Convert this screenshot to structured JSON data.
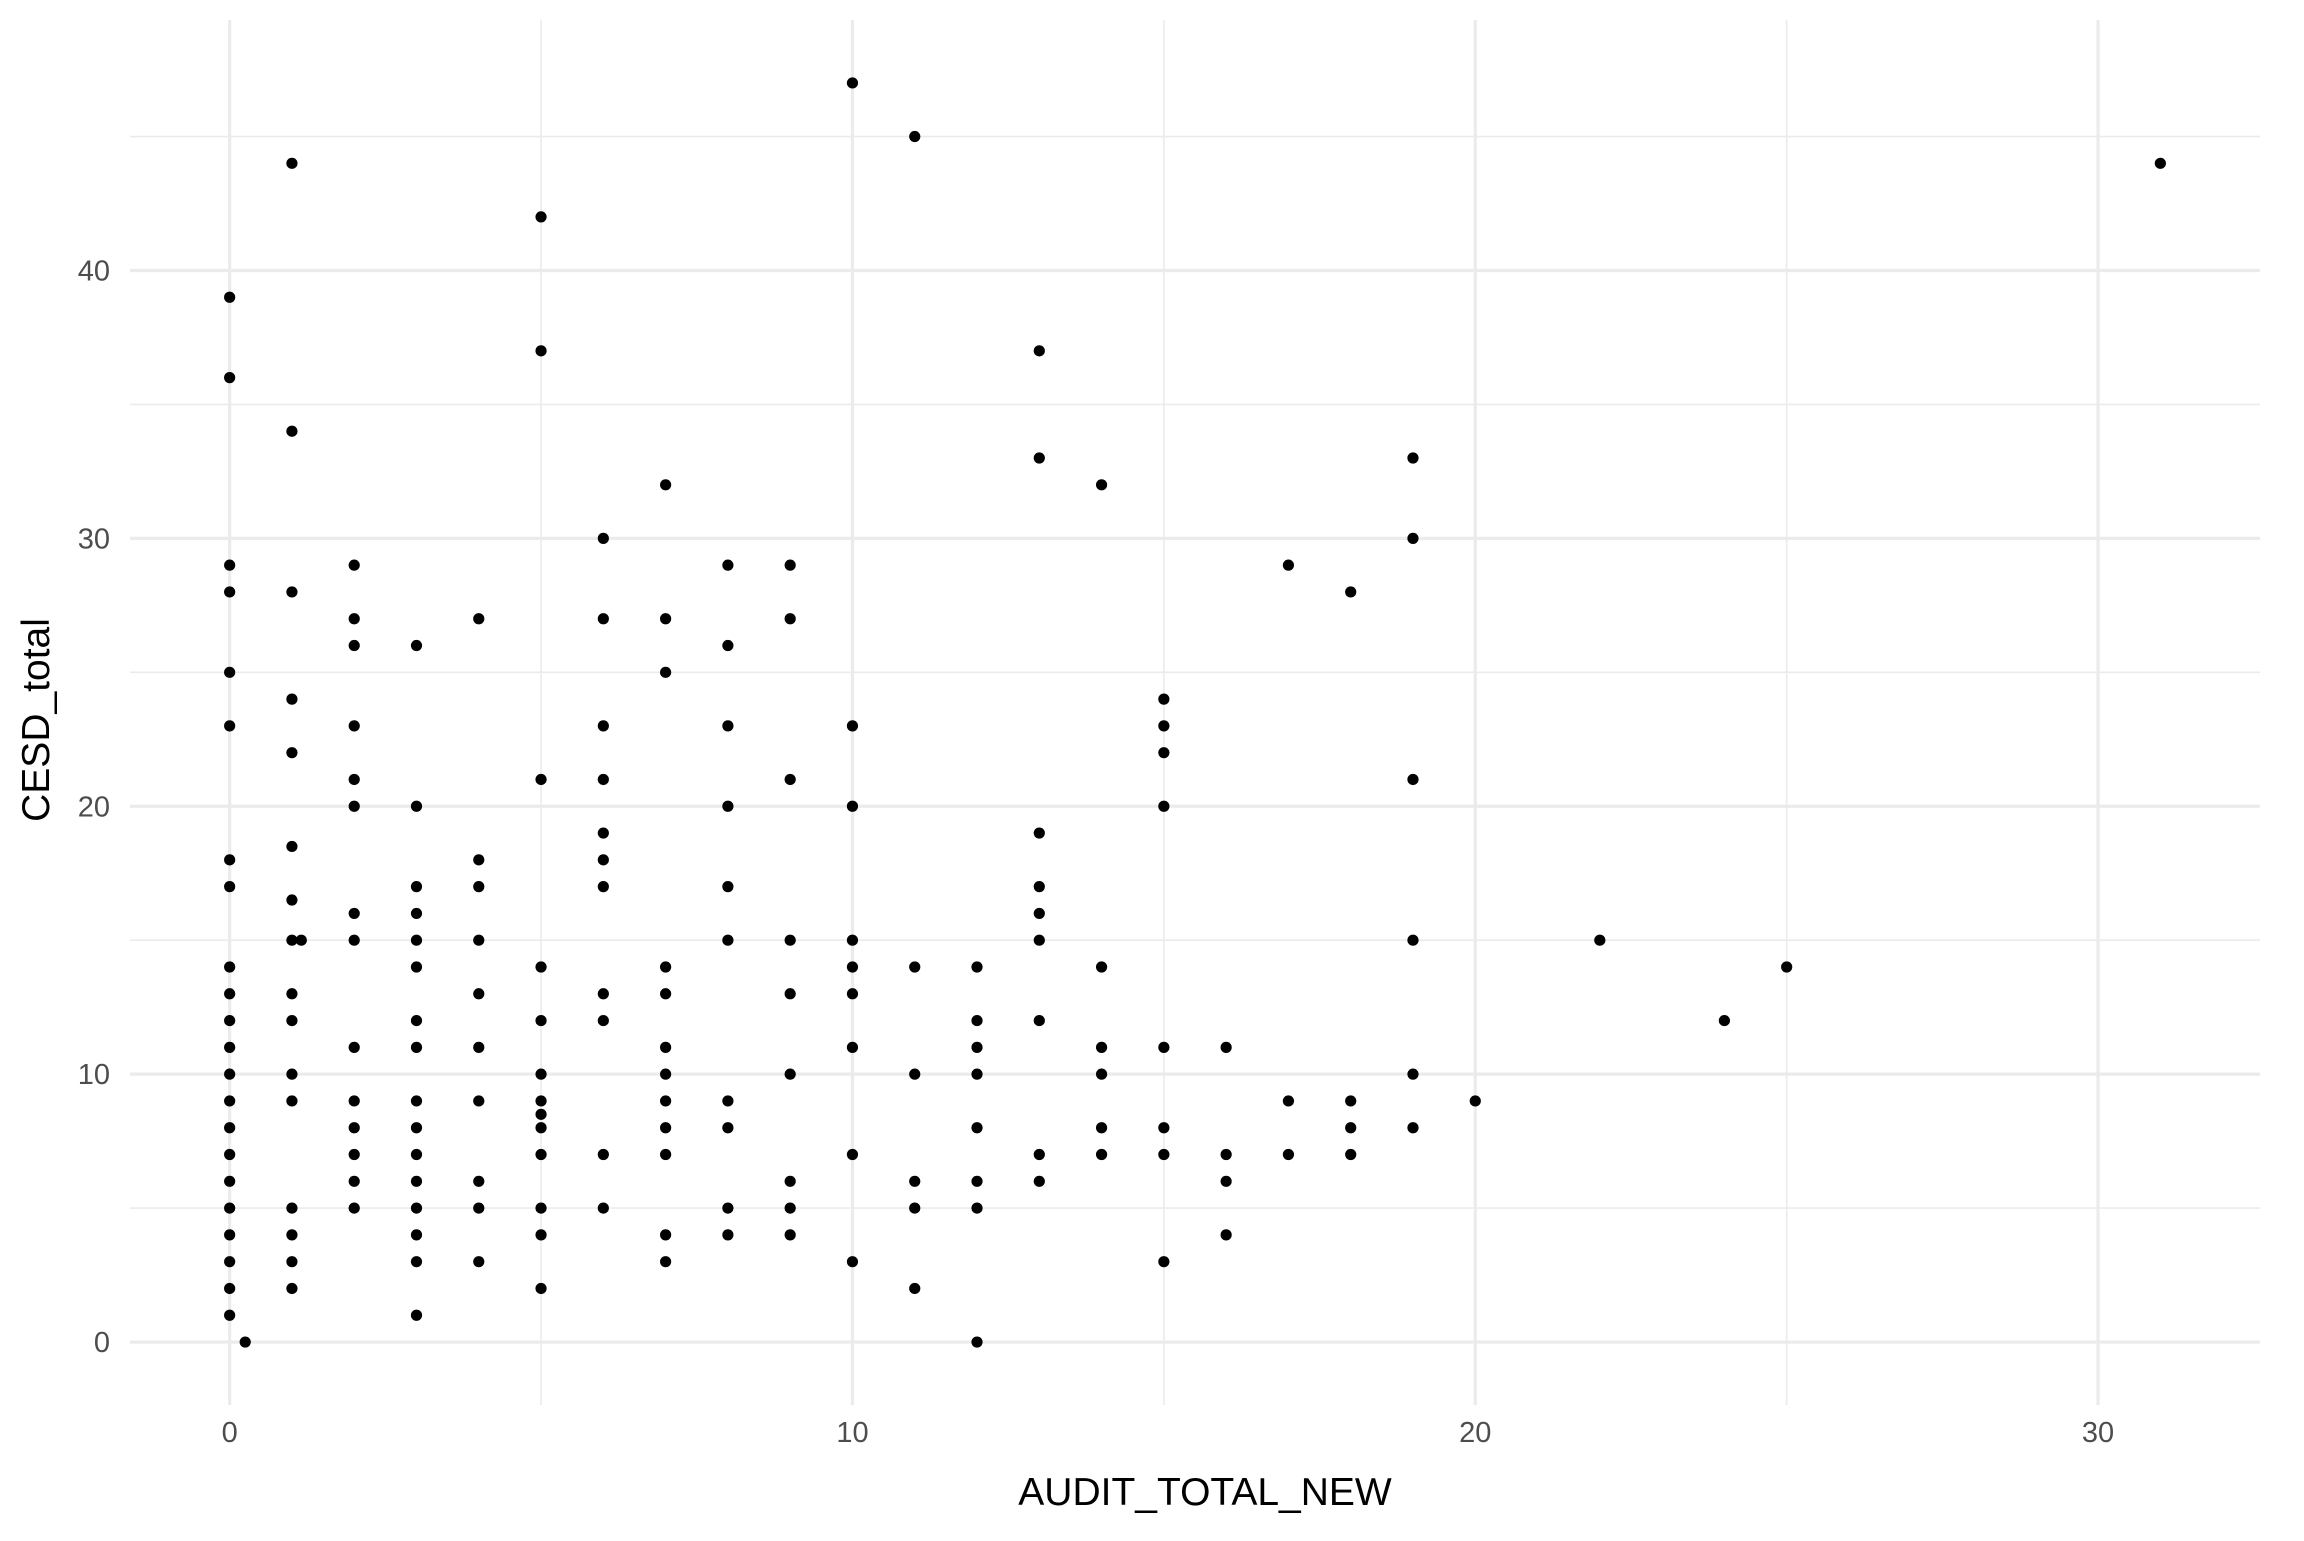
{
  "chart_data": {
    "type": "scatter",
    "title": "",
    "xlabel": "AUDIT_TOTAL_NEW",
    "ylabel": "CESD_total",
    "xlim": [
      -1.6,
      32.6
    ],
    "ylim": [
      -2.35,
      49.35
    ],
    "x_ticks": [
      0,
      10,
      20,
      30
    ],
    "x_tick_labels": [
      "0",
      "10",
      "20",
      "30"
    ],
    "x_minor_ticks": [
      5,
      15,
      25
    ],
    "y_ticks": [
      0,
      10,
      20,
      30,
      40
    ],
    "y_tick_labels": [
      "0",
      "10",
      "20",
      "30",
      "40"
    ],
    "y_minor_ticks": [
      5,
      15,
      25,
      35,
      45
    ],
    "grid": true,
    "colors": {
      "points": "#000000",
      "grid": "#ebebeb",
      "background": "#ffffff"
    },
    "points": [
      [
        0,
        39
      ],
      [
        0,
        36
      ],
      [
        0,
        29
      ],
      [
        0,
        28
      ],
      [
        0,
        25
      ],
      [
        0,
        23
      ],
      [
        0,
        18
      ],
      [
        0,
        17
      ],
      [
        0,
        14
      ],
      [
        0,
        13
      ],
      [
        0,
        12
      ],
      [
        0,
        11
      ],
      [
        0,
        10
      ],
      [
        0,
        9
      ],
      [
        0,
        8
      ],
      [
        0,
        7
      ],
      [
        0,
        6
      ],
      [
        0,
        5
      ],
      [
        0,
        4
      ],
      [
        0,
        3
      ],
      [
        0,
        2
      ],
      [
        0,
        1
      ],
      [
        0.25,
        0
      ],
      [
        1,
        44
      ],
      [
        1,
        34
      ],
      [
        1,
        28
      ],
      [
        1,
        24
      ],
      [
        1,
        22
      ],
      [
        1,
        18.5
      ],
      [
        1,
        16.5
      ],
      [
        1,
        15
      ],
      [
        1.15,
        15
      ],
      [
        1,
        13
      ],
      [
        1,
        12
      ],
      [
        1,
        10
      ],
      [
        1,
        9
      ],
      [
        1,
        5
      ],
      [
        1,
        4
      ],
      [
        1,
        3
      ],
      [
        1,
        2
      ],
      [
        2,
        29
      ],
      [
        2,
        27
      ],
      [
        2,
        26
      ],
      [
        2,
        23
      ],
      [
        2,
        21
      ],
      [
        2,
        20
      ],
      [
        2,
        16
      ],
      [
        2,
        15
      ],
      [
        2,
        11
      ],
      [
        2,
        9
      ],
      [
        2,
        8
      ],
      [
        2,
        7
      ],
      [
        2,
        6
      ],
      [
        2,
        5
      ],
      [
        3,
        26
      ],
      [
        3,
        20
      ],
      [
        3,
        17
      ],
      [
        3,
        16
      ],
      [
        3,
        15
      ],
      [
        3,
        14
      ],
      [
        3,
        12
      ],
      [
        3,
        11
      ],
      [
        3,
        9
      ],
      [
        3,
        8
      ],
      [
        3,
        7
      ],
      [
        3,
        6
      ],
      [
        3,
        5
      ],
      [
        3,
        4
      ],
      [
        3,
        3
      ],
      [
        3,
        1
      ],
      [
        4,
        27
      ],
      [
        4,
        18
      ],
      [
        4,
        17
      ],
      [
        4,
        15
      ],
      [
        4,
        13
      ],
      [
        4,
        11
      ],
      [
        4,
        9
      ],
      [
        4,
        6
      ],
      [
        4,
        5
      ],
      [
        4,
        3
      ],
      [
        5,
        42
      ],
      [
        5,
        37
      ],
      [
        5,
        21
      ],
      [
        5,
        14
      ],
      [
        5,
        12
      ],
      [
        5,
        10
      ],
      [
        5,
        9
      ],
      [
        5,
        8.5
      ],
      [
        5,
        8
      ],
      [
        5,
        7
      ],
      [
        5,
        5
      ],
      [
        5,
        4
      ],
      [
        5,
        2
      ],
      [
        6,
        30
      ],
      [
        6,
        27
      ],
      [
        6,
        23
      ],
      [
        6,
        21
      ],
      [
        6,
        19
      ],
      [
        6,
        18
      ],
      [
        6,
        17
      ],
      [
        6,
        13
      ],
      [
        6,
        12
      ],
      [
        6,
        7
      ],
      [
        6,
        5
      ],
      [
        7,
        32
      ],
      [
        7,
        27
      ],
      [
        7,
        25
      ],
      [
        7,
        14
      ],
      [
        7,
        13
      ],
      [
        7,
        11
      ],
      [
        7,
        10
      ],
      [
        7,
        9
      ],
      [
        7,
        8
      ],
      [
        7,
        7
      ],
      [
        7,
        4
      ],
      [
        7,
        3
      ],
      [
        8,
        29
      ],
      [
        8,
        26
      ],
      [
        8,
        23
      ],
      [
        8,
        20
      ],
      [
        8,
        17
      ],
      [
        8,
        15
      ],
      [
        8,
        9
      ],
      [
        8,
        8
      ],
      [
        8,
        5
      ],
      [
        8,
        4
      ],
      [
        9,
        29
      ],
      [
        9,
        27
      ],
      [
        9,
        21
      ],
      [
        9,
        15
      ],
      [
        9,
        13
      ],
      [
        9,
        10
      ],
      [
        9,
        6
      ],
      [
        9,
        5
      ],
      [
        9,
        4
      ],
      [
        10,
        47
      ],
      [
        10,
        23
      ],
      [
        10,
        20
      ],
      [
        10,
        15
      ],
      [
        10,
        14
      ],
      [
        10,
        13
      ],
      [
        10,
        11
      ],
      [
        10,
        7
      ],
      [
        10,
        3
      ],
      [
        11,
        45
      ],
      [
        11,
        14
      ],
      [
        11,
        10
      ],
      [
        11,
        6
      ],
      [
        11,
        5
      ],
      [
        11,
        2
      ],
      [
        12,
        14
      ],
      [
        12,
        12
      ],
      [
        12,
        11
      ],
      [
        12,
        10
      ],
      [
        12,
        8
      ],
      [
        12,
        6
      ],
      [
        12,
        5
      ],
      [
        12,
        0
      ],
      [
        13,
        37
      ],
      [
        13,
        33
      ],
      [
        13,
        19
      ],
      [
        13,
        17
      ],
      [
        13,
        16
      ],
      [
        13,
        15
      ],
      [
        13,
        12
      ],
      [
        13,
        7
      ],
      [
        13,
        6
      ],
      [
        14,
        32
      ],
      [
        14,
        14
      ],
      [
        14,
        11
      ],
      [
        14,
        10
      ],
      [
        14,
        8
      ],
      [
        14,
        7
      ],
      [
        15,
        24
      ],
      [
        15,
        23
      ],
      [
        15,
        22
      ],
      [
        15,
        20
      ],
      [
        15,
        11
      ],
      [
        15,
        8
      ],
      [
        15,
        7
      ],
      [
        15,
        3
      ],
      [
        16,
        11
      ],
      [
        16,
        7
      ],
      [
        16,
        6
      ],
      [
        16,
        4
      ],
      [
        17,
        29
      ],
      [
        17,
        9
      ],
      [
        17,
        7
      ],
      [
        18,
        28
      ],
      [
        18,
        9
      ],
      [
        18,
        8
      ],
      [
        18,
        7
      ],
      [
        19,
        33
      ],
      [
        19,
        30
      ],
      [
        19,
        21
      ],
      [
        19,
        15
      ],
      [
        19,
        10
      ],
      [
        19,
        8
      ],
      [
        20,
        9
      ],
      [
        22,
        15
      ],
      [
        24,
        12
      ],
      [
        25,
        14
      ],
      [
        31,
        44
      ]
    ]
  }
}
